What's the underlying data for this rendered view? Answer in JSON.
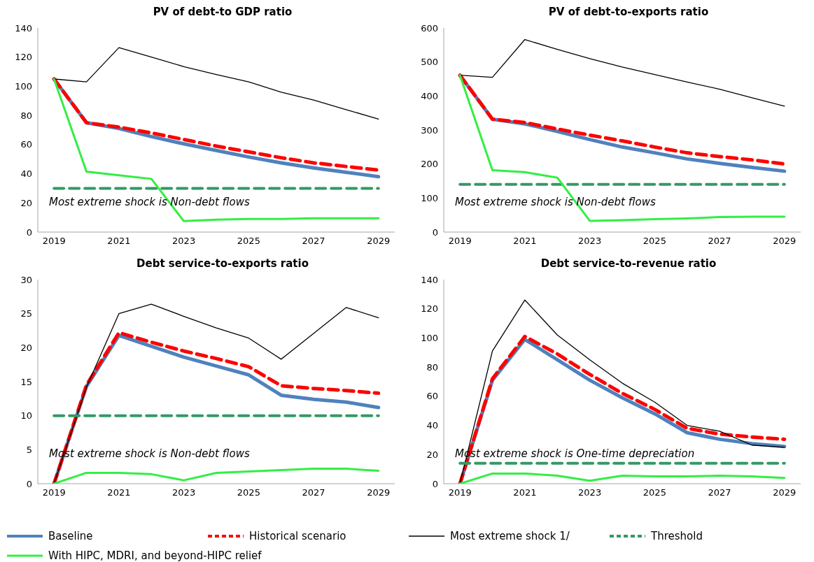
{
  "chart_data": [
    {
      "type": "line",
      "title": "PV of debt-to GDP ratio",
      "categories": [
        "2019",
        null,
        "2021",
        null,
        "2023",
        null,
        "2025",
        null,
        "2027",
        null,
        "2029"
      ],
      "ylim": [
        0,
        140
      ],
      "yticks": [
        0,
        20,
        40,
        60,
        80,
        100,
        120,
        140
      ],
      "grid": false,
      "legend": "bottom",
      "annotations": [
        "Most extreme shock is Non-debt flows"
      ],
      "series": [
        {
          "name": "Baseline",
          "color": "#4f81bd",
          "line_style": "solid",
          "values": [
            105,
            75,
            71,
            65.5,
            60.5,
            56,
            51.5,
            47.5,
            44,
            41,
            38
          ]
        },
        {
          "name": "Historical scenario",
          "color": "#ff0000",
          "line_style": "dashed",
          "values": [
            105,
            75,
            72,
            68,
            63.5,
            59,
            55,
            51,
            47.5,
            45,
            42.5
          ]
        },
        {
          "name": "Most extreme shock 1/",
          "color": "#000000",
          "line_style": "solid",
          "values": [
            105,
            103,
            126.5,
            120,
            113.5,
            108,
            103,
            96,
            90.5,
            84,
            77.5
          ]
        },
        {
          "name": "Threshold",
          "color": "#339966",
          "line_style": "dashed",
          "values": [
            30,
            30,
            30,
            30,
            30,
            30,
            30,
            30,
            30,
            30,
            30
          ]
        },
        {
          "name": "With HIPC, MDRI, and beyond-HIPC relief",
          "color": "#33ee44",
          "line_style": "solid",
          "values": [
            105,
            41.5,
            39,
            36.5,
            7.5,
            8.5,
            9,
            9,
            9.5,
            9.5,
            9.5
          ]
        }
      ]
    },
    {
      "type": "line",
      "title": "PV of debt-to-exports  ratio",
      "categories": [
        "2019",
        null,
        "2021",
        null,
        "2023",
        null,
        "2025",
        null,
        "2027",
        null,
        "2029"
      ],
      "ylim": [
        0,
        600
      ],
      "yticks": [
        0,
        100,
        200,
        300,
        400,
        500,
        600
      ],
      "grid": false,
      "legend": "bottom",
      "annotations": [
        "Most extreme shock is Non-debt flows"
      ],
      "series": [
        {
          "name": "Baseline",
          "color": "#4f81bd",
          "line_style": "solid",
          "values": [
            461,
            332,
            318,
            296,
            272,
            250,
            233,
            215,
            202,
            190,
            179
          ]
        },
        {
          "name": "Historical scenario",
          "color": "#ff0000",
          "line_style": "dashed",
          "values": [
            461,
            332,
            322,
            303,
            285,
            268,
            250,
            233,
            222,
            212,
            200
          ]
        },
        {
          "name": "Most extreme shock 1/",
          "color": "#000000",
          "line_style": "solid",
          "values": [
            461,
            455,
            566,
            537,
            510,
            485,
            463,
            441,
            420,
            395,
            370
          ]
        },
        {
          "name": "Threshold",
          "color": "#339966",
          "line_style": "dashed",
          "values": [
            140,
            140,
            140,
            140,
            140,
            140,
            140,
            140,
            140,
            140,
            140
          ]
        },
        {
          "name": "With HIPC, MDRI, and beyond-HIPC relief",
          "color": "#33ee44",
          "line_style": "solid",
          "values": [
            461,
            182,
            176,
            160,
            33,
            35,
            38,
            40,
            44,
            45,
            45
          ]
        }
      ]
    },
    {
      "type": "line",
      "title": "Debt service-to-exports  ratio",
      "categories": [
        "2019",
        null,
        "2021",
        null,
        "2023",
        null,
        "2025",
        null,
        "2027",
        null,
        "2029"
      ],
      "ylim": [
        0,
        30
      ],
      "yticks": [
        0,
        5,
        10,
        15,
        20,
        25,
        30
      ],
      "grid": false,
      "legend": "bottom",
      "annotations": [
        "Most extreme shock is Non-debt flows"
      ],
      "series": [
        {
          "name": "Baseline",
          "color": "#4f81bd",
          "line_style": "solid",
          "values": [
            0,
            14.3,
            21.8,
            20.2,
            18.6,
            17.3,
            16,
            13,
            12.4,
            12,
            11.2
          ]
        },
        {
          "name": "Historical scenario",
          "color": "#ff0000",
          "line_style": "dashed",
          "values": [
            0,
            14.5,
            22.2,
            20.8,
            19.5,
            18.4,
            17.2,
            14.4,
            14,
            13.7,
            13.3
          ]
        },
        {
          "name": "Most extreme shock 1/",
          "color": "#000000",
          "line_style": "solid",
          "values": [
            0,
            14.2,
            25,
            26.4,
            24.6,
            22.9,
            21.4,
            18.3,
            22.1,
            25.9,
            24.4
          ]
        },
        {
          "name": "Threshold",
          "color": "#339966",
          "line_style": "dashed",
          "values": [
            10,
            10,
            10,
            10,
            10,
            10,
            10,
            10,
            10,
            10,
            10
          ]
        },
        {
          "name": "With HIPC, MDRI, and beyond-HIPC relief",
          "color": "#33ee44",
          "line_style": "solid",
          "values": [
            0,
            1.6,
            1.6,
            1.4,
            0.5,
            1.6,
            1.8,
            2,
            2.2,
            2.2,
            1.9
          ]
        }
      ]
    },
    {
      "type": "line",
      "title": "Debt service-to-revenue  ratio",
      "categories": [
        "2019",
        null,
        "2021",
        null,
        "2023",
        null,
        "2025",
        null,
        "2027",
        null,
        "2029"
      ],
      "ylim": [
        0,
        140
      ],
      "yticks": [
        0,
        20,
        40,
        60,
        80,
        100,
        120,
        140
      ],
      "grid": false,
      "legend": "bottom",
      "annotations": [
        "Most extreme shock is One-time  depreciation"
      ],
      "series": [
        {
          "name": "Baseline",
          "color": "#4f81bd",
          "line_style": "solid",
          "values": [
            0,
            71,
            99,
            85,
            71,
            59,
            48,
            35,
            30.5,
            27.5,
            25.5
          ]
        },
        {
          "name": "Historical scenario",
          "color": "#ff0000",
          "line_style": "dashed",
          "values": [
            0,
            72,
            101,
            89,
            75,
            62,
            51,
            38,
            34,
            32,
            30.5
          ]
        },
        {
          "name": "Most extreme shock 1/",
          "color": "#000000",
          "line_style": "solid",
          "values": [
            0,
            91,
            126,
            102,
            85,
            69,
            56,
            40,
            36,
            26.5,
            25
          ]
        },
        {
          "name": "Threshold",
          "color": "#339966",
          "line_style": "dashed",
          "values": [
            14,
            14,
            14,
            14,
            14,
            14,
            14,
            14,
            14,
            14,
            14
          ]
        },
        {
          "name": "With HIPC, MDRI, and beyond-HIPC relief",
          "color": "#33ee44",
          "line_style": "solid",
          "values": [
            0,
            7,
            7,
            5.5,
            2,
            5.5,
            5,
            5,
            5.5,
            5,
            4
          ]
        }
      ]
    }
  ]
}
